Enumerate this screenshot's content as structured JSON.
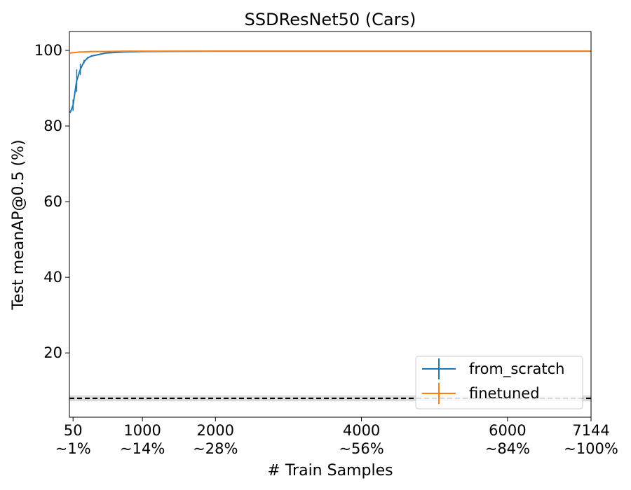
{
  "chart_data": {
    "type": "line",
    "title": "SSDResNet50 (Cars)",
    "xlabel": "# Train Samples",
    "ylabel": "Test meanAP@0.5 (%)",
    "xlim": [
      0,
      7144
    ],
    "ylim": [
      3,
      105
    ],
    "x_ticks": [
      {
        "value": 50,
        "label": "50",
        "sublabel": "~1%"
      },
      {
        "value": 1000,
        "label": "1000",
        "sublabel": "~14%"
      },
      {
        "value": 2000,
        "label": "2000",
        "sublabel": "~28%"
      },
      {
        "value": 4000,
        "label": "4000",
        "sublabel": "~56%"
      },
      {
        "value": 6000,
        "label": "6000",
        "sublabel": "~84%"
      },
      {
        "value": 7144,
        "label": "7144",
        "sublabel": "~100%"
      }
    ],
    "y_ticks": [
      20,
      40,
      60,
      80,
      100
    ],
    "legend_position": "lower-right",
    "grid": false,
    "series": [
      {
        "name": "from_scratch",
        "color": "#1f77b4",
        "x": [
          10,
          50,
          100,
          150,
          200,
          250,
          300,
          500,
          750,
          1000,
          2000,
          4000,
          6000,
          7144
        ],
        "y": [
          83.5,
          85.5,
          92.0,
          95.0,
          97.0,
          98.0,
          98.5,
          99.3,
          99.6,
          99.7,
          99.8,
          99.8,
          99.8,
          99.8
        ],
        "err": [
          0,
          1.5,
          3.0,
          1.5,
          0.5,
          0.3,
          0.2,
          0.1,
          0,
          0,
          0,
          0,
          0,
          0
        ]
      },
      {
        "name": "finetuned",
        "color": "#ff7f0e",
        "x": [
          10,
          50,
          100,
          150,
          200,
          300,
          500,
          750,
          1000,
          2000,
          4000,
          6000,
          7144
        ],
        "y": [
          99.3,
          99.4,
          99.5,
          99.6,
          99.6,
          99.7,
          99.7,
          99.8,
          99.8,
          99.8,
          99.8,
          99.8,
          99.8
        ],
        "err": [
          0,
          0,
          0,
          0,
          0,
          0,
          0,
          0,
          0,
          0,
          0,
          0,
          0
        ]
      }
    ],
    "reference_lines": [
      {
        "style": "dashed-black",
        "y": 8.0,
        "band": [
          7.2,
          8.8
        ]
      },
      {
        "style": "dashed-light",
        "y": 7.6
      }
    ]
  }
}
